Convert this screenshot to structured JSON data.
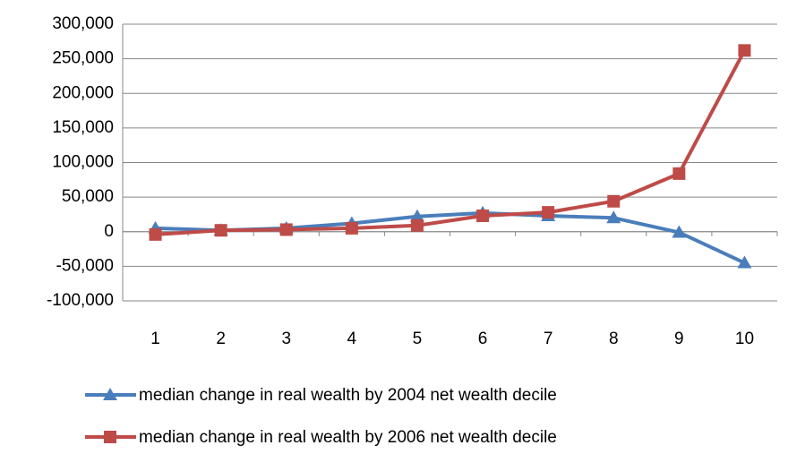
{
  "chart_data": {
    "type": "line",
    "categories": [
      "1",
      "2",
      "3",
      "4",
      "5",
      "6",
      "7",
      "8",
      "9",
      "10"
    ],
    "series": [
      {
        "name": "median change in real wealth by 2004 net wealth decile",
        "color": "#4a7ebb",
        "marker": "triangle",
        "values": [
          5000,
          2000,
          5000,
          12000,
          22000,
          27000,
          23000,
          20000,
          -1000,
          -45000
        ]
      },
      {
        "name": "median change in real wealth by 2006 net wealth decile",
        "color": "#be4b48",
        "marker": "square",
        "values": [
          -4000,
          2000,
          3000,
          5000,
          9000,
          23000,
          28000,
          44000,
          84000,
          262000
        ]
      }
    ],
    "ylim": [
      -100000,
      300000
    ],
    "yticks": [
      {
        "value": -100000,
        "label": "-100,000"
      },
      {
        "value": -50000,
        "label": "-50,000"
      },
      0,
      {
        "value": 50000,
        "label": "50,000"
      },
      {
        "value": 100000,
        "label": "100,000"
      },
      {
        "value": 150000,
        "label": "150,000"
      },
      {
        "value": 200000,
        "label": "200,000"
      },
      {
        "value": 250000,
        "label": "250,000"
      },
      {
        "value": 300000,
        "label": "300,000"
      }
    ],
    "grid": true
  }
}
